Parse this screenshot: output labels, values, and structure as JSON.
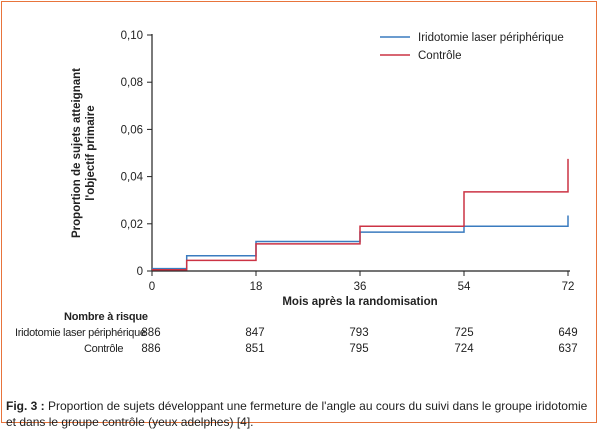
{
  "chart_data": {
    "type": "line",
    "step": true,
    "x": [
      0,
      6,
      18,
      36,
      54,
      72
    ],
    "xticks": [
      0,
      18,
      36,
      54,
      72
    ],
    "xlim": [
      0,
      72
    ],
    "ylim": [
      0,
      0.1
    ],
    "yticks": [
      0,
      0.02,
      0.04,
      0.06,
      0.08,
      0.1
    ],
    "ytick_labels": [
      "0",
      "0,02",
      "0,04",
      "0,06",
      "0,08",
      "0,10"
    ],
    "xlabel": "Mois après la randomisation",
    "ylabel_line1": "Proportion de sujets atteignant",
    "ylabel_line2": "l'objectif primaire",
    "legend_position": "top-right",
    "grid": false,
    "series": [
      {
        "name": "Iridotomie laser périphérique",
        "color": "#3a7bbf",
        "steps": [
          [
            0,
            0.001
          ],
          [
            6,
            0.001
          ],
          [
            6,
            0.0065
          ],
          [
            18,
            0.0065
          ],
          [
            18,
            0.0125
          ],
          [
            36,
            0.0125
          ],
          [
            36,
            0.0165
          ],
          [
            54,
            0.0165
          ],
          [
            54,
            0.019
          ],
          [
            72,
            0.019
          ],
          [
            72,
            0.0235
          ]
        ]
      },
      {
        "name": "Contrôle",
        "color": "#cc3344",
        "steps": [
          [
            0,
            0.0005
          ],
          [
            6,
            0.0005
          ],
          [
            6,
            0.0045
          ],
          [
            18,
            0.0045
          ],
          [
            18,
            0.0115
          ],
          [
            36,
            0.0115
          ],
          [
            36,
            0.019
          ],
          [
            54,
            0.019
          ],
          [
            54,
            0.0335
          ],
          [
            72,
            0.0335
          ],
          [
            72,
            0.0475
          ]
        ]
      }
    ]
  },
  "risk_table": {
    "title": "Nombre à risque",
    "rows": [
      {
        "label": "Iridotomie laser périphérique",
        "values": [
          "886",
          "847",
          "793",
          "725",
          "649"
        ]
      },
      {
        "label": "Contrôle",
        "values": [
          "886",
          "851",
          "795",
          "724",
          "637"
        ]
      }
    ]
  },
  "caption": {
    "fig_label": "Fig. 3 :",
    "text": " Proportion de sujets développant une fermeture de l'angle au cours du suivi dans le groupe iridotomie et dans le groupe contrôle (yeux adelphes) [4]."
  }
}
